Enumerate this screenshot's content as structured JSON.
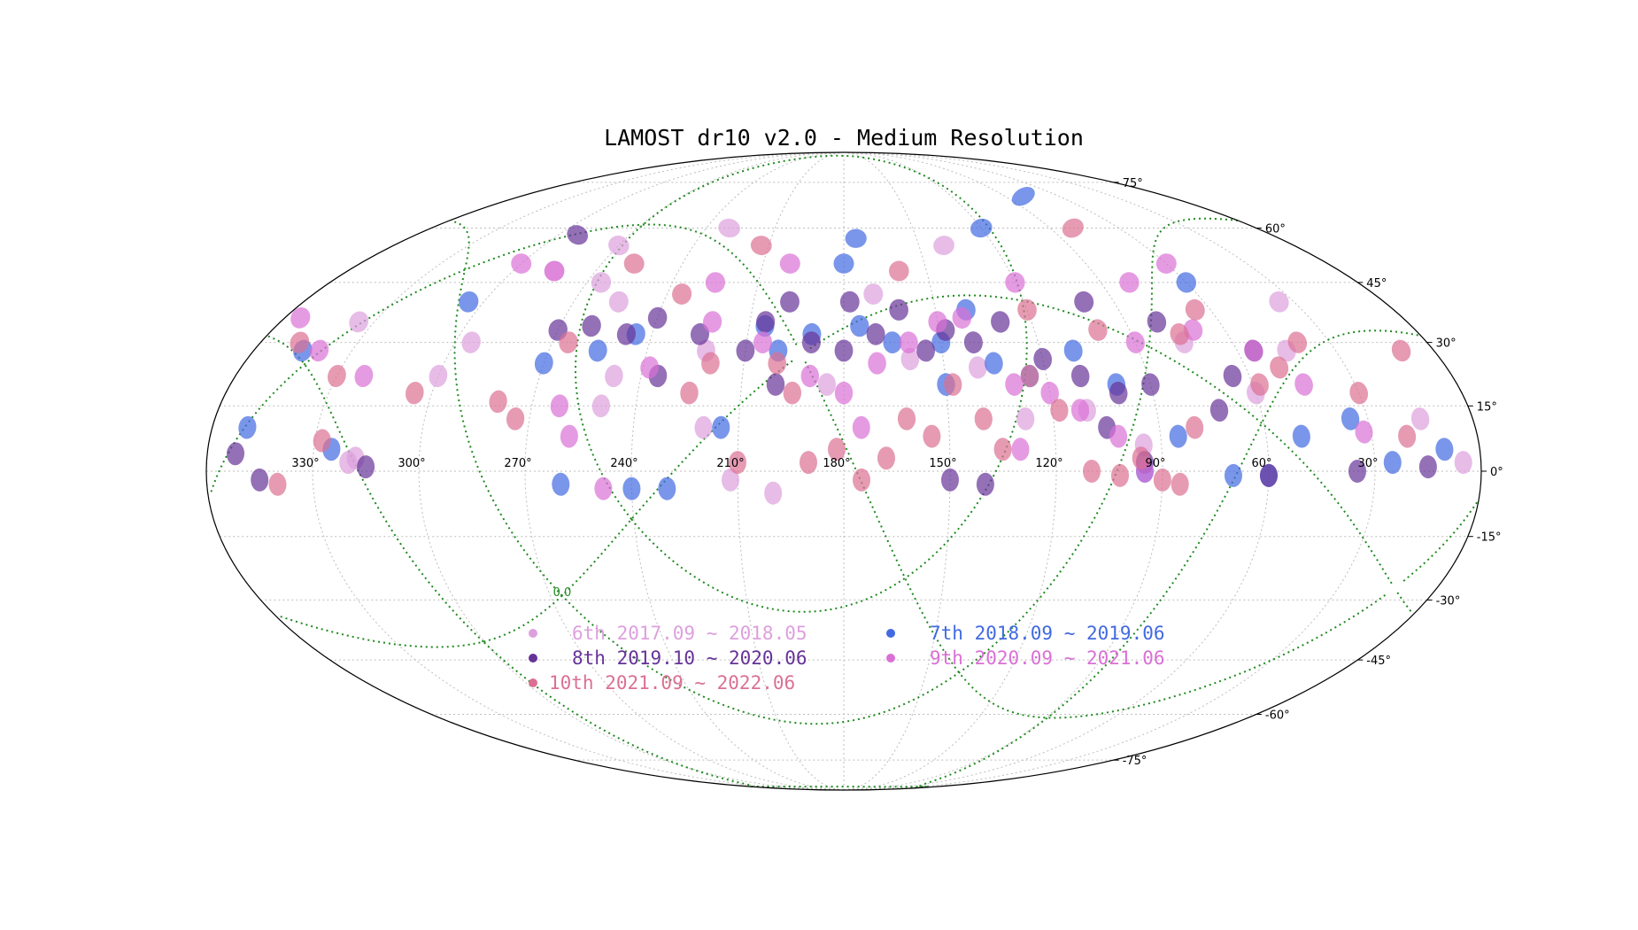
{
  "chart_data": {
    "type": "scatter",
    "title": "LAMOST dr10 v2.0 - Medium Resolution",
    "projection": "mollweide",
    "x_axis": {
      "label": "",
      "ticks": [
        "330°",
        "300°",
        "270°",
        "240°",
        "210°",
        "180°",
        "150°",
        "120°",
        "90°",
        "60°",
        "30°"
      ],
      "tick_values": [
        330,
        300,
        270,
        240,
        210,
        180,
        150,
        120,
        90,
        60,
        30
      ],
      "range": [
        360,
        0
      ],
      "direction": "decreasing left-to-right"
    },
    "y_axis": {
      "label": "",
      "ticks": [
        "75°",
        "60°",
        "45°",
        "30°",
        "15°",
        "0°",
        "-15°",
        "-30°",
        "-45°",
        "-60°",
        "-75°"
      ],
      "tick_values": [
        75,
        60,
        45,
        30,
        15,
        0,
        -15,
        -30,
        -45,
        -60,
        -75
      ],
      "range": [
        -90,
        90
      ]
    },
    "grid": true,
    "overlay": {
      "kind": "galactic-plane-and-bounds",
      "label": "0.0",
      "color": "#1f8a1f",
      "style": "dotted"
    },
    "legend": {
      "placement": "lower-center",
      "columns": 2,
      "entries": [
        {
          "label": "6th 2017.09 ~ 2018.05",
          "color": "#dda0dd"
        },
        {
          "label": "7th 2018.09 ~ 2019.06",
          "color": "#4169e1"
        },
        {
          "label": "8th 2019.10 ~ 2020.06",
          "color": "#663399"
        },
        {
          "label": "9th 2020.09 ~ 2021.06",
          "color": "#da70d6"
        },
        {
          "label": "10th 2021.09 ~ 2022.06",
          "color": "#db7093"
        }
      ]
    },
    "series": [
      {
        "name": "6th 2017.09 ~ 2018.05",
        "color": "#dda0dd",
        "points": [
          [
            320,
            2
          ],
          [
            318,
            3
          ],
          [
            300,
            22
          ],
          [
            295,
            30
          ],
          [
            285,
            48
          ],
          [
            270,
            55
          ],
          [
            255,
            40
          ],
          [
            248,
            22
          ],
          [
            230,
            60
          ],
          [
            222,
            28
          ],
          [
            212,
            -2
          ],
          [
            200,
            -5
          ],
          [
            185,
            20
          ],
          [
            170,
            42
          ],
          [
            160,
            26
          ],
          [
            140,
            24
          ],
          [
            128,
            12
          ],
          [
            110,
            14
          ],
          [
            95,
            6
          ],
          [
            75,
            30
          ],
          [
            60,
            18
          ],
          [
            45,
            28
          ],
          [
            35,
            40
          ],
          [
            15,
            12
          ],
          [
            5,
            2
          ],
          [
            250,
            15
          ],
          [
            265,
            45
          ],
          [
            335,
            35
          ],
          [
            220,
            10
          ],
          [
            140,
            55
          ]
        ]
      },
      {
        "name": "7th 2018.09 ~ 2019.06",
        "color": "#4169e1",
        "points": [
          [
            345,
            28
          ],
          [
            350,
            10
          ],
          [
            325,
            5
          ],
          [
            305,
            40
          ],
          [
            270,
            25
          ],
          [
            255,
            28
          ],
          [
            245,
            32
          ],
          [
            260,
            -3
          ],
          [
            240,
            -4
          ],
          [
            230,
            -4
          ],
          [
            215,
            10
          ],
          [
            200,
            28
          ],
          [
            190,
            32
          ],
          [
            175,
            34
          ],
          [
            165,
            30
          ],
          [
            150,
            30
          ],
          [
            140,
            38
          ],
          [
            135,
            25
          ],
          [
            125,
            22
          ],
          [
            110,
            28
          ],
          [
            100,
            20
          ],
          [
            95,
            0
          ],
          [
            85,
            8
          ],
          [
            70,
            -1
          ],
          [
            60,
            -1
          ],
          [
            50,
            8
          ],
          [
            35,
            12
          ],
          [
            25,
            2
          ],
          [
            10,
            5
          ],
          [
            180,
            50
          ],
          [
            175,
            57
          ],
          [
            120,
            60
          ],
          [
            60,
            45
          ],
          [
            80,
            70
          ],
          [
            150,
            20
          ],
          [
            205,
            34
          ]
        ]
      },
      {
        "name": "8th 2019.10 ~ 2020.06",
        "color": "#663399",
        "points": [
          [
            352,
            4
          ],
          [
            345,
            -2
          ],
          [
            315,
            1
          ],
          [
            292,
            58
          ],
          [
            270,
            33
          ],
          [
            260,
            34
          ],
          [
            248,
            32
          ],
          [
            240,
            36
          ],
          [
            225,
            32
          ],
          [
            210,
            28
          ],
          [
            205,
            35
          ],
          [
            198,
            40
          ],
          [
            190,
            30
          ],
          [
            180,
            28
          ],
          [
            170,
            32
          ],
          [
            162,
            38
          ],
          [
            155,
            28
          ],
          [
            148,
            33
          ],
          [
            140,
            30
          ],
          [
            130,
            35
          ],
          [
            120,
            26
          ],
          [
            110,
            22
          ],
          [
            105,
            10
          ],
          [
            100,
            18
          ],
          [
            95,
            2
          ],
          [
            90,
            20
          ],
          [
            80,
            35
          ],
          [
            72,
            14
          ],
          [
            65,
            22
          ],
          [
            60,
            -1
          ],
          [
            55,
            28
          ],
          [
            35,
            0
          ],
          [
            15,
            1
          ],
          [
            200,
            20
          ],
          [
            235,
            22
          ],
          [
            178,
            40
          ],
          [
            100,
            40
          ],
          [
            140,
            -3
          ],
          [
            150,
            -2
          ]
        ]
      },
      {
        "name": "9th 2020.09 ~ 2021.06",
        "color": "#da70d6",
        "points": [
          [
            355,
            36
          ],
          [
            340,
            28
          ],
          [
            322,
            22
          ],
          [
            300,
            50
          ],
          [
            285,
            48
          ],
          [
            262,
            15
          ],
          [
            258,
            8
          ],
          [
            248,
            -4
          ],
          [
            238,
            24
          ],
          [
            222,
            35
          ],
          [
            205,
            30
          ],
          [
            190,
            22
          ],
          [
            180,
            18
          ],
          [
            170,
            25
          ],
          [
            160,
            30
          ],
          [
            150,
            35
          ],
          [
            142,
            36
          ],
          [
            130,
            20
          ],
          [
            120,
            18
          ],
          [
            112,
            14
          ],
          [
            102,
            8
          ],
          [
            95,
            0
          ],
          [
            90,
            30
          ],
          [
            80,
            45
          ],
          [
            70,
            33
          ],
          [
            55,
            28
          ],
          [
            45,
            20
          ],
          [
            32,
            9
          ],
          [
            225,
            45
          ],
          [
            200,
            50
          ],
          [
            120,
            45
          ],
          [
            60,
            50
          ],
          [
            175,
            10
          ],
          [
            130,
            5
          ]
        ]
      },
      {
        "name": "10th 2021.09 ~ 2022.06",
        "color": "#db7093",
        "points": [
          [
            348,
            30
          ],
          [
            340,
            -3
          ],
          [
            330,
            22
          ],
          [
            328,
            7
          ],
          [
            305,
            18
          ],
          [
            280,
            16
          ],
          [
            274,
            12
          ],
          [
            265,
            30
          ],
          [
            258,
            50
          ],
          [
            235,
            42
          ],
          [
            220,
            25
          ],
          [
            213,
            55
          ],
          [
            200,
            25
          ],
          [
            195,
            18
          ],
          [
            190,
            2
          ],
          [
            182,
            5
          ],
          [
            175,
            -2
          ],
          [
            168,
            3
          ],
          [
            162,
            12
          ],
          [
            155,
            8
          ],
          [
            148,
            20
          ],
          [
            140,
            12
          ],
          [
            135,
            5
          ],
          [
            125,
            22
          ],
          [
            118,
            14
          ],
          [
            110,
            0
          ],
          [
            102,
            -1
          ],
          [
            96,
            3
          ],
          [
            90,
            -2
          ],
          [
            85,
            -3
          ],
          [
            80,
            10
          ],
          [
            75,
            32
          ],
          [
            65,
            38
          ],
          [
            58,
            20
          ],
          [
            50,
            24
          ],
          [
            40,
            30
          ],
          [
            30,
            18
          ],
          [
            20,
            8
          ],
          [
            10,
            28
          ],
          [
            160,
            48
          ],
          [
            120,
            38
          ],
          [
            100,
            33
          ],
          [
            80,
            60
          ],
          [
            225,
            18
          ],
          [
            210,
            2
          ]
        ]
      }
    ]
  }
}
